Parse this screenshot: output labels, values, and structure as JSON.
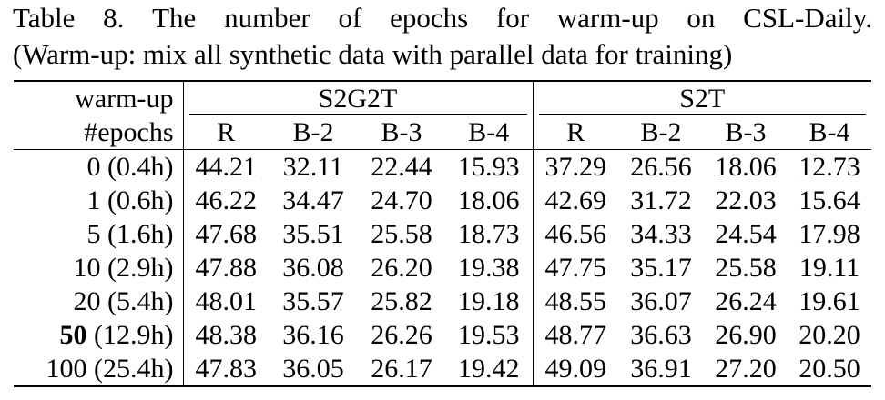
{
  "caption": {
    "line1_words": [
      "Table",
      "8.",
      "The",
      "number",
      "of",
      "epochs",
      "for",
      "warm-up",
      "on",
      "CSL-Daily."
    ],
    "line2": "(Warm-up: mix all synthetic data with parallel data for training)"
  },
  "table": {
    "row_header_top": "warm-up",
    "row_header_bottom": "#epochs",
    "groups": [
      "S2G2T",
      "S2T"
    ],
    "columns": [
      "R",
      "B-2",
      "B-3",
      "B-4",
      "R",
      "B-2",
      "B-3",
      "B-4"
    ],
    "rows": [
      {
        "epochs": "0",
        "time": "(0.4h)",
        "values": [
          "44.21",
          "32.11",
          "22.44",
          "15.93",
          "37.29",
          "26.56",
          "18.06",
          "12.73"
        ]
      },
      {
        "epochs": "1",
        "time": "(0.6h)",
        "values": [
          "46.22",
          "34.47",
          "24.70",
          "18.06",
          "42.69",
          "31.72",
          "22.03",
          "15.64"
        ]
      },
      {
        "epochs": "5",
        "time": "(1.6h)",
        "values": [
          "47.68",
          "35.51",
          "25.58",
          "18.73",
          "46.56",
          "34.33",
          "24.54",
          "17.98"
        ]
      },
      {
        "epochs": "10",
        "time": "(2.9h)",
        "values": [
          "47.88",
          "36.08",
          "26.20",
          "19.38",
          "47.75",
          "35.17",
          "25.58",
          "19.11"
        ]
      },
      {
        "epochs": "20",
        "time": "(5.4h)",
        "values": [
          "48.01",
          "35.57",
          "25.82",
          "19.18",
          "48.55",
          "36.07",
          "26.24",
          "19.61"
        ]
      },
      {
        "epochs": "50",
        "time": "(12.9h)",
        "values": [
          "48.38",
          "36.16",
          "26.26",
          "19.53",
          "48.77",
          "36.63",
          "26.90",
          "20.20"
        ]
      },
      {
        "epochs": "100",
        "time": "(25.4h)",
        "values": [
          "47.83",
          "36.05",
          "26.17",
          "19.42",
          "49.09",
          "36.91",
          "27.20",
          "20.50"
        ]
      }
    ]
  }
}
